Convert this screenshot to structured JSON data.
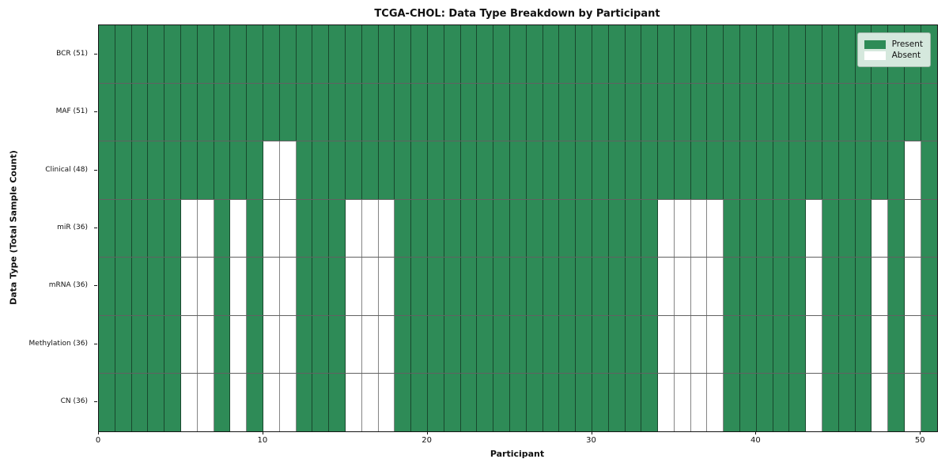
{
  "chart_data": {
    "type": "heatmap",
    "title": "TCGA-CHOL: Data Type Breakdown by Participant",
    "xlabel": "Participant",
    "ylabel": "Data Type (Total Sample Count)",
    "n_participants": 51,
    "x_ticks": [
      0,
      10,
      20,
      30,
      40,
      50
    ],
    "xlim": [
      0,
      51
    ],
    "grid": "on",
    "legend_position": "upper-right",
    "colors": {
      "present": "#2e8b57",
      "absent": "#ffffff"
    },
    "legend": [
      {
        "label": "Present",
        "color": "#2e8b57"
      },
      {
        "label": "Absent",
        "color": "#ffffff"
      }
    ],
    "rows": [
      {
        "label": "BCR (51)",
        "count": 51,
        "absent": []
      },
      {
        "label": "MAF (51)",
        "count": 51,
        "absent": []
      },
      {
        "label": "Clinical (48)",
        "count": 48,
        "absent": [
          10,
          11,
          49
        ]
      },
      {
        "label": "miR (36)",
        "count": 36,
        "absent": [
          5,
          6,
          8,
          10,
          11,
          15,
          16,
          17,
          34,
          35,
          36,
          37,
          43,
          47,
          49
        ]
      },
      {
        "label": "mRNA (36)",
        "count": 36,
        "absent": [
          5,
          6,
          8,
          10,
          11,
          15,
          16,
          17,
          34,
          35,
          36,
          37,
          43,
          47,
          49
        ]
      },
      {
        "label": "Methylation (36)",
        "count": 36,
        "absent": [
          5,
          6,
          8,
          10,
          11,
          15,
          16,
          17,
          34,
          35,
          36,
          37,
          43,
          47,
          49
        ]
      },
      {
        "label": "CN (36)",
        "count": 36,
        "absent": [
          5,
          6,
          8,
          10,
          11,
          15,
          16,
          17,
          34,
          35,
          36,
          37,
          43,
          47,
          49
        ]
      }
    ]
  }
}
